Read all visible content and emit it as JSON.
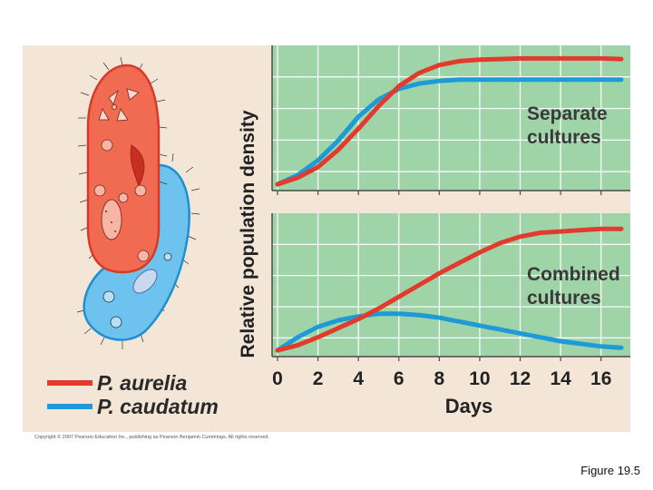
{
  "figure_caption": "Figure 19.5",
  "copyright": "Copyright © 2007 Pearson Education Inc., publishing as Pearson Benjamin Cummings. All rights reserved.",
  "colors": {
    "background": "#f3e6d7",
    "plot_bg": "#9fd4a8",
    "grid": "#ffffff",
    "aurelia": "#e23b2e",
    "caudatum": "#1e9ad6",
    "organism_aurelia": "#f06b52",
    "organism_caudatum": "#6ec3ee"
  },
  "organisms": [
    {
      "name": "P. aurelia",
      "icon": "paramecium-aurelia-illustration"
    },
    {
      "name": "P. caudatum",
      "icon": "paramecium-caudatum-illustration"
    }
  ],
  "chart_data": {
    "type": "line",
    "ylabel": "Relative population density",
    "xlabel": "Days",
    "xlim": [
      0,
      17
    ],
    "ylim": [
      0,
      1
    ],
    "x_ticks": [
      0,
      2,
      4,
      6,
      8,
      10,
      12,
      14,
      16
    ],
    "x_tick_labels": [
      "0",
      "2",
      "4",
      "6",
      "8",
      "10",
      "12",
      "14",
      "16"
    ],
    "legend": [
      {
        "label": "P. aurelia",
        "series": "aurelia"
      },
      {
        "label": "P. caudatum",
        "series": "caudatum"
      }
    ],
    "panels": [
      {
        "title": "Separate cultures",
        "series": [
          {
            "name": "P. aurelia",
            "key": "aurelia",
            "x": [
              0,
              1,
              2,
              3,
              4,
              5,
              6,
              7,
              8,
              9,
              10,
              11,
              12,
              13,
              14,
              15,
              16,
              17
            ],
            "y": [
              0.02,
              0.07,
              0.15,
              0.28,
              0.44,
              0.61,
              0.76,
              0.86,
              0.92,
              0.95,
              0.96,
              0.965,
              0.97,
              0.97,
              0.97,
              0.97,
              0.97,
              0.965
            ]
          },
          {
            "name": "P. caudatum",
            "key": "caudatum",
            "x": [
              0,
              1,
              2,
              3,
              4,
              5,
              6,
              7,
              8,
              9,
              10,
              11,
              12,
              13,
              14,
              15,
              16,
              17
            ],
            "y": [
              0.02,
              0.09,
              0.2,
              0.35,
              0.53,
              0.66,
              0.74,
              0.78,
              0.8,
              0.81,
              0.81,
              0.81,
              0.81,
              0.81,
              0.81,
              0.81,
              0.81,
              0.81
            ]
          }
        ]
      },
      {
        "title": "Combined cultures",
        "series": [
          {
            "name": "P. aurelia",
            "key": "aurelia",
            "x": [
              0,
              1,
              2,
              3,
              4,
              5,
              6,
              7,
              8,
              9,
              10,
              11,
              12,
              13,
              14,
              15,
              16,
              17
            ],
            "y": [
              0.02,
              0.06,
              0.12,
              0.19,
              0.26,
              0.34,
              0.43,
              0.52,
              0.61,
              0.69,
              0.77,
              0.84,
              0.89,
              0.92,
              0.93,
              0.94,
              0.95,
              0.95
            ]
          },
          {
            "name": "P. caudatum",
            "key": "caudatum",
            "x": [
              0,
              1,
              2,
              3,
              4,
              5,
              6,
              7,
              8,
              9,
              10,
              11,
              12,
              13,
              14,
              15,
              16,
              17
            ],
            "y": [
              0.02,
              0.12,
              0.2,
              0.25,
              0.28,
              0.3,
              0.3,
              0.29,
              0.27,
              0.24,
              0.21,
              0.18,
              0.15,
              0.12,
              0.09,
              0.07,
              0.05,
              0.04
            ]
          }
        ]
      }
    ]
  }
}
